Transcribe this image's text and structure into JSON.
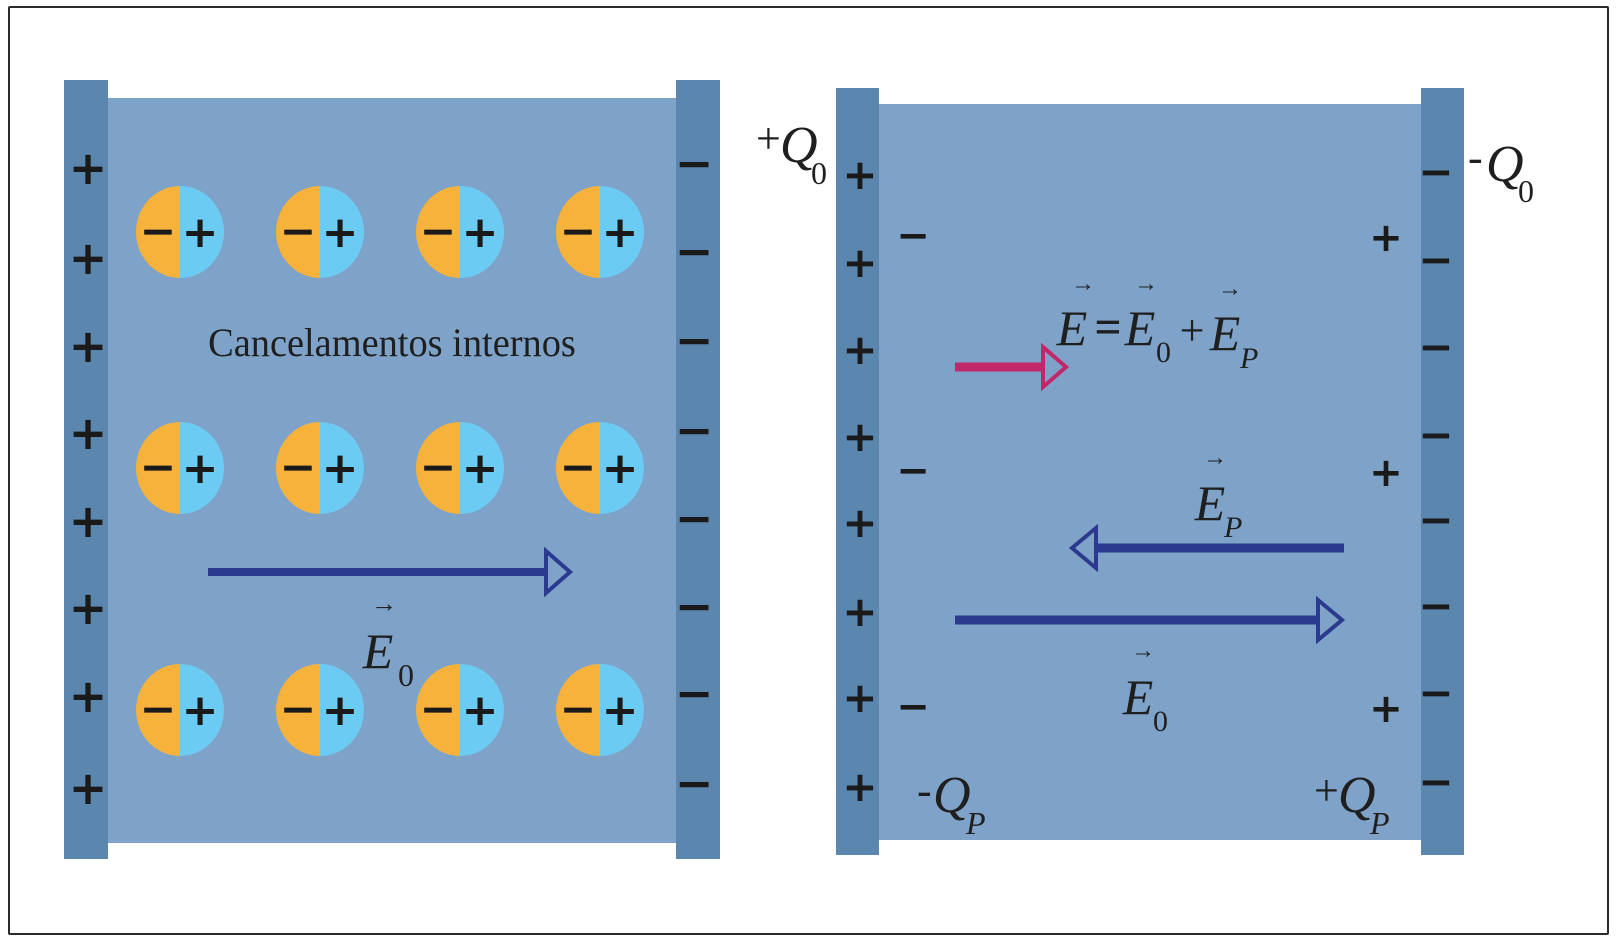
{
  "left_panel": {
    "label": "Cancelamentos internos",
    "field_label": {
      "symbol": "E",
      "subscript": "0"
    },
    "plate_left_sign": "+",
    "plate_right_sign": "−",
    "dipole": {
      "neg": "−",
      "pos": "+"
    },
    "colors": {
      "dipole_neg": "#F6B23A",
      "dipole_pos": "#6CCBF2",
      "arrow": "#2B3A8F"
    }
  },
  "right_panel": {
    "charge_left_plate": {
      "sign": "+",
      "symbol": "Q",
      "subscript": "0"
    },
    "charge_right_plate": {
      "sign": "-",
      "symbol": "Q",
      "subscript": "0"
    },
    "charge_left_dielectric": {
      "sign": "-",
      "symbol": "Q",
      "subscript": "P"
    },
    "charge_right_dielectric": {
      "sign": "+",
      "symbol": "Q",
      "subscript": "P"
    },
    "equation": {
      "lhs": "E",
      "equals": "=",
      "term1": {
        "symbol": "E",
        "subscript": "0"
      },
      "plus": "+",
      "term2": {
        "symbol": "E",
        "subscript": "P"
      }
    },
    "field_p": {
      "symbol": "E",
      "subscript": "P"
    },
    "field_0": {
      "symbol": "E",
      "subscript": "0"
    },
    "plate_left_sign": "+",
    "plate_right_sign": "−",
    "induced_left_sign": "−",
    "induced_right_sign": "+",
    "colors": {
      "net_arrow": "#C0286A",
      "arrow": "#2B3A8F"
    }
  },
  "colors": {
    "dielectric": "#7FA3C8",
    "plate": "#5B86AE"
  }
}
